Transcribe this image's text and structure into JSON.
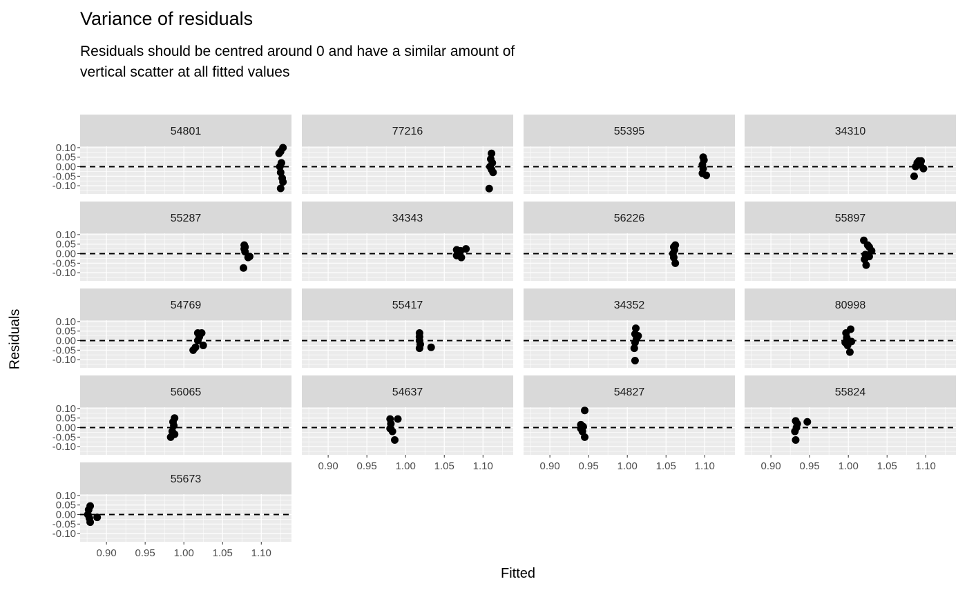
{
  "chart_data": {
    "type": "scatter",
    "title": "Variance of residuals",
    "subtitle": "Residuals should be centred around 0 and have a similar amount of vertical scatter at all fitted values",
    "xlabel": "Fitted",
    "ylabel": "Residuals",
    "xlim": [
      0.866,
      1.139
    ],
    "ylim": [
      -0.143,
      0.107
    ],
    "x_ticks": [
      "0.90",
      "0.95",
      "1.00",
      "1.05",
      "1.10"
    ],
    "x_tick_values": [
      0.9,
      0.95,
      1.0,
      1.05,
      1.1
    ],
    "y_ticks": [
      "0.10",
      "0.05",
      "0.00",
      "-0.05",
      "-0.10"
    ],
    "y_tick_values": [
      0.1,
      0.05,
      0.0,
      -0.05,
      -0.1
    ],
    "reference_line": {
      "y": 0,
      "style": "dashed"
    },
    "grid": true,
    "point_color": "#000000",
    "panels": [
      {
        "label": "54801",
        "points": [
          [
            1.128,
            0.1
          ],
          [
            1.125,
            0.08
          ],
          [
            1.123,
            0.07
          ],
          [
            1.124,
            0.0
          ],
          [
            1.126,
            0.02
          ],
          [
            1.125,
            -0.03
          ],
          [
            1.127,
            -0.06
          ],
          [
            1.128,
            -0.08
          ],
          [
            1.125,
            -0.114
          ]
        ]
      },
      {
        "label": "77216",
        "points": [
          [
            1.111,
            0.07
          ],
          [
            1.11,
            0.04
          ],
          [
            1.112,
            0.02
          ],
          [
            1.109,
            0.0
          ],
          [
            1.111,
            -0.015
          ],
          [
            1.113,
            -0.03
          ],
          [
            1.108,
            -0.115
          ]
        ]
      },
      {
        "label": "55395",
        "points": [
          [
            1.098,
            0.05
          ],
          [
            1.099,
            0.035
          ],
          [
            1.097,
            0.01
          ],
          [
            1.098,
            -0.01
          ],
          [
            1.097,
            -0.035
          ],
          [
            1.102,
            -0.045
          ]
        ]
      },
      {
        "label": "34310",
        "points": [
          [
            1.091,
            0.03
          ],
          [
            1.094,
            0.03
          ],
          [
            1.089,
            0.02
          ],
          [
            1.093,
            0.01
          ],
          [
            1.087,
            0.0
          ],
          [
            1.097,
            -0.01
          ],
          [
            1.085,
            -0.05
          ]
        ]
      },
      {
        "label": "55287",
        "points": [
          [
            1.078,
            0.045
          ],
          [
            1.079,
            0.035
          ],
          [
            1.078,
            0.025
          ],
          [
            1.079,
            0.01
          ],
          [
            1.085,
            -0.015
          ],
          [
            1.083,
            -0.02
          ],
          [
            1.077,
            -0.075
          ]
        ]
      },
      {
        "label": "34343",
        "points": [
          [
            1.066,
            0.02
          ],
          [
            1.071,
            0.015
          ],
          [
            1.068,
            0.01
          ],
          [
            1.066,
            -0.01
          ],
          [
            1.07,
            -0.005
          ],
          [
            1.072,
            -0.02
          ],
          [
            1.078,
            0.025
          ]
        ]
      },
      {
        "label": "56226",
        "points": [
          [
            1.062,
            0.045
          ],
          [
            1.06,
            0.035
          ],
          [
            1.061,
            0.02
          ],
          [
            1.059,
            0.0
          ],
          [
            1.06,
            -0.02
          ],
          [
            1.062,
            -0.05
          ]
        ]
      },
      {
        "label": "55897",
        "points": [
          [
            1.02,
            0.07
          ],
          [
            1.025,
            0.045
          ],
          [
            1.027,
            0.035
          ],
          [
            1.03,
            0.015
          ],
          [
            1.022,
            -0.005
          ],
          [
            1.027,
            -0.015
          ],
          [
            1.021,
            -0.03
          ],
          [
            1.023,
            -0.06
          ]
        ]
      },
      {
        "label": "54769",
        "points": [
          [
            1.018,
            0.04
          ],
          [
            1.023,
            0.04
          ],
          [
            1.02,
            0.02
          ],
          [
            1.018,
            0.0
          ],
          [
            1.025,
            -0.025
          ],
          [
            1.015,
            -0.035
          ],
          [
            1.012,
            -0.05
          ]
        ]
      },
      {
        "label": "55417",
        "points": [
          [
            1.018,
            0.04
          ],
          [
            1.018,
            0.02
          ],
          [
            1.018,
            0.0
          ],
          [
            1.019,
            -0.02
          ],
          [
            1.018,
            -0.04
          ],
          [
            1.033,
            -0.035
          ]
        ]
      },
      {
        "label": "34352",
        "points": [
          [
            1.011,
            0.065
          ],
          [
            1.01,
            0.035
          ],
          [
            1.014,
            0.025
          ],
          [
            1.012,
            0.01
          ],
          [
            1.01,
            -0.01
          ],
          [
            1.009,
            -0.04
          ],
          [
            1.01,
            -0.105
          ]
        ]
      },
      {
        "label": "80998",
        "points": [
          [
            1.003,
            0.06
          ],
          [
            0.997,
            0.04
          ],
          [
            0.998,
            0.015
          ],
          [
            1.004,
            -0.005
          ],
          [
            0.996,
            -0.01
          ],
          [
            0.999,
            -0.025
          ],
          [
            1.002,
            -0.06
          ]
        ]
      },
      {
        "label": "56065",
        "points": [
          [
            0.988,
            0.05
          ],
          [
            0.986,
            0.03
          ],
          [
            0.987,
            0.01
          ],
          [
            0.985,
            -0.02
          ],
          [
            0.988,
            -0.035
          ],
          [
            0.983,
            -0.05
          ]
        ]
      },
      {
        "label": "54637",
        "points": [
          [
            0.98,
            0.045
          ],
          [
            0.99,
            0.045
          ],
          [
            0.981,
            0.02
          ],
          [
            0.98,
            -0.005
          ],
          [
            0.983,
            -0.02
          ],
          [
            0.986,
            -0.065
          ]
        ]
      },
      {
        "label": "54827",
        "points": [
          [
            0.945,
            0.09
          ],
          [
            0.94,
            0.015
          ],
          [
            0.943,
            0.005
          ],
          [
            0.94,
            -0.005
          ],
          [
            0.942,
            -0.02
          ],
          [
            0.945,
            -0.05
          ]
        ]
      },
      {
        "label": "55824",
        "points": [
          [
            0.932,
            0.035
          ],
          [
            0.934,
            0.02
          ],
          [
            0.933,
            0.0
          ],
          [
            0.931,
            -0.02
          ],
          [
            0.932,
            -0.065
          ],
          [
            0.947,
            0.03
          ]
        ]
      },
      {
        "label": "55673",
        "points": [
          [
            0.879,
            0.045
          ],
          [
            0.877,
            0.025
          ],
          [
            0.876,
            0.0
          ],
          [
            0.878,
            -0.02
          ],
          [
            0.879,
            -0.04
          ],
          [
            0.888,
            -0.015
          ]
        ]
      }
    ]
  }
}
